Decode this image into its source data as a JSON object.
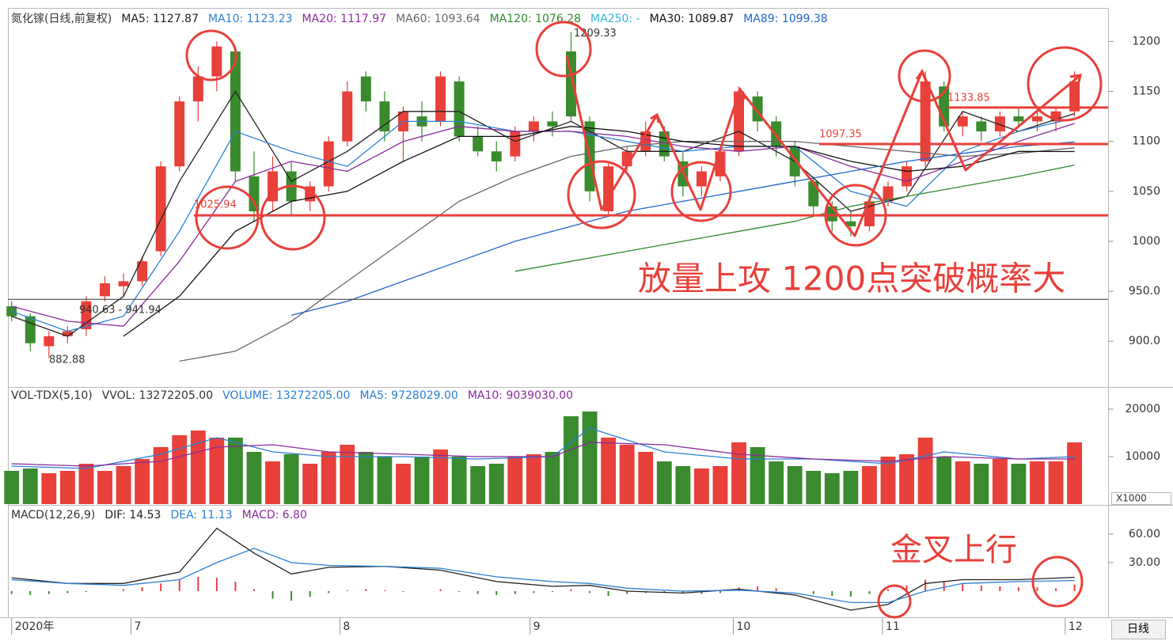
{
  "chart_data": [
    {
      "type": "candlestick",
      "title": "氮化镓(日线,前复权)",
      "xlim": [
        -0.2,
        58.8
      ],
      "ylim": [
        855,
        1232
      ],
      "yticks": [
        {
          "value": 900,
          "label": "900.0"
        },
        {
          "value": 950,
          "label": "950.0"
        },
        1000,
        1050,
        1100,
        1150,
        1200
      ],
      "xticks": [
        {
          "value": 0,
          "label": "2020年"
        },
        {
          "value": 6.4,
          "label": "7"
        },
        {
          "value": 17.6,
          "label": "8"
        },
        {
          "value": 27.8,
          "label": "9"
        },
        {
          "value": 38.7,
          "label": "10"
        },
        {
          "value": 46.7,
          "label": "11"
        },
        {
          "value": 56.5,
          "label": "12"
        }
      ],
      "up_color": "#e8403a",
      "down_color": "#3a8a2e",
      "ohlc": [
        [
          935,
          940,
          920,
          925
        ],
        [
          925,
          928,
          890,
          898
        ],
        [
          895,
          910,
          883,
          905
        ],
        [
          905,
          915,
          898,
          910
        ],
        [
          912,
          945,
          905,
          940
        ],
        [
          945,
          965,
          940,
          958
        ],
        [
          955,
          968,
          945,
          960
        ],
        [
          960,
          985,
          955,
          980
        ],
        [
          990,
          1080,
          985,
          1075
        ],
        [
          1075,
          1145,
          1070,
          1140
        ],
        [
          1140,
          1175,
          1120,
          1165
        ],
        [
          1165,
          1200,
          1150,
          1195
        ],
        [
          1190,
          1195,
          1060,
          1070
        ],
        [
          1065,
          1090,
          1020,
          1030
        ],
        [
          1040,
          1085,
          1030,
          1070
        ],
        [
          1070,
          1080,
          1025,
          1040
        ],
        [
          1040,
          1060,
          1030,
          1055
        ],
        [
          1055,
          1105,
          1050,
          1100
        ],
        [
          1100,
          1160,
          1095,
          1150
        ],
        [
          1165,
          1170,
          1130,
          1140
        ],
        [
          1140,
          1150,
          1100,
          1110
        ],
        [
          1110,
          1135,
          1080,
          1130
        ],
        [
          1125,
          1140,
          1100,
          1115
        ],
        [
          1120,
          1170,
          1115,
          1165
        ],
        [
          1160,
          1165,
          1100,
          1105
        ],
        [
          1105,
          1115,
          1085,
          1090
        ],
        [
          1090,
          1100,
          1070,
          1080
        ],
        [
          1085,
          1115,
          1080,
          1110
        ],
        [
          1110,
          1125,
          1100,
          1120
        ],
        [
          1120,
          1130,
          1105,
          1115
        ],
        [
          1190,
          1209.33,
          1120,
          1125
        ],
        [
          1120,
          1125,
          1040,
          1050
        ],
        [
          1030,
          1080,
          1025,
          1075
        ],
        [
          1075,
          1095,
          1070,
          1090
        ],
        [
          1090,
          1120,
          1085,
          1110
        ],
        [
          1110,
          1115,
          1080,
          1085
        ],
        [
          1080,
          1090,
          1045,
          1055
        ],
        [
          1055,
          1075,
          1045,
          1070
        ],
        [
          1065,
          1095,
          1060,
          1090
        ],
        [
          1090,
          1155,
          1085,
          1150
        ],
        [
          1145,
          1150,
          1110,
          1120
        ],
        [
          1120,
          1125,
          1085,
          1095
        ],
        [
          1095,
          1100,
          1055,
          1065
        ],
        [
          1060,
          1065,
          1025,
          1035
        ],
        [
          1035,
          1040,
          1010,
          1020
        ],
        [
          1020,
          1030,
          1005,
          1015
        ],
        [
          1015,
          1045,
          1010,
          1040
        ],
        [
          1040,
          1060,
          1035,
          1055
        ],
        [
          1055,
          1080,
          1050,
          1075
        ],
        [
          1080,
          1170,
          1075,
          1160
        ],
        [
          1155,
          1160,
          1110,
          1115
        ],
        [
          1115,
          1130,
          1105,
          1125
        ],
        [
          1120,
          1125,
          1100,
          1110
        ],
        [
          1110,
          1130,
          1105,
          1125
        ],
        [
          1125,
          1135,
          1115,
          1120
        ],
        [
          1120,
          1130,
          1110,
          1125
        ],
        [
          1120,
          1135,
          1110,
          1130
        ],
        [
          1130,
          1170,
          1125,
          1160
        ]
      ],
      "series": [
        {
          "label": "MA5: 1127.87",
          "color": "#222222",
          "x": [
            0,
            3,
            6,
            9,
            12,
            15,
            18,
            21,
            24,
            27,
            30,
            33,
            36,
            39,
            42,
            45,
            48,
            51,
            54,
            57
          ],
          "values": [
            925,
            905,
            945,
            1060,
            1150,
            1060,
            1090,
            1130,
            1130,
            1100,
            1120,
            1090,
            1090,
            1110,
            1080,
            1030,
            1045,
            1130,
            1110,
            1127.87
          ]
        },
        {
          "label": "MA10: 1123.23",
          "color": "#2a7fd4",
          "x": [
            0,
            3,
            6,
            9,
            12,
            15,
            18,
            21,
            24,
            27,
            30,
            33,
            36,
            39,
            42,
            45,
            48,
            51,
            54,
            57
          ],
          "values": [
            930,
            910,
            925,
            1010,
            1110,
            1090,
            1075,
            1120,
            1120,
            1110,
            1110,
            1100,
            1090,
            1095,
            1095,
            1050,
            1035,
            1090,
            1110,
            1123.23
          ]
        },
        {
          "label": "MA20: 1117.97",
          "color": "#8a2b9a",
          "x": [
            0,
            3,
            6,
            9,
            12,
            15,
            18,
            21,
            24,
            27,
            30,
            33,
            36,
            39,
            42,
            45,
            48,
            51,
            54,
            57
          ],
          "values": [
            935,
            920,
            915,
            980,
            1060,
            1080,
            1070,
            1100,
            1115,
            1110,
            1110,
            1105,
            1095,
            1090,
            1095,
            1075,
            1060,
            1080,
            1100,
            1117.97
          ]
        },
        {
          "label": "MA60: 1093.64",
          "color": "#666666",
          "x": [
            0,
            3,
            6,
            9,
            12,
            15,
            18,
            21,
            24,
            27,
            30,
            33,
            36,
            39,
            42,
            45,
            48,
            51,
            54,
            57
          ],
          "values": [
            null,
            null,
            null,
            880,
            890,
            920,
            960,
            1000,
            1040,
            1065,
            1085,
            1095,
            1100,
            1100,
            1100,
            1095,
            1090,
            1085,
            1088,
            1093.64
          ]
        },
        {
          "label": "MA120: 1076.28",
          "color": "#2e8b2e",
          "x": [
            27,
            30,
            33,
            36,
            39,
            42,
            45,
            48,
            51,
            54,
            57
          ],
          "values": [
            970,
            980,
            990,
            1000,
            1010,
            1020,
            1035,
            1045,
            1055,
            1065,
            1076.28
          ]
        },
        {
          "label": "MA250: -",
          "color": "#33b5d6",
          "x": [],
          "values": []
        },
        {
          "label": "MA30: 1089.87",
          "color": "#111111",
          "x": [
            0,
            3,
            6,
            9,
            12,
            15,
            18,
            21,
            24,
            27,
            30,
            33,
            36,
            39,
            42,
            45,
            48,
            51,
            54,
            57
          ],
          "values": [
            null,
            null,
            905,
            945,
            1010,
            1040,
            1050,
            1080,
            1105,
            1105,
            1115,
            1110,
            1100,
            1095,
            1095,
            1080,
            1070,
            1075,
            1090,
            1089.87
          ]
        },
        {
          "label": "MA89: 1099.38",
          "color": "#2266cc",
          "x": [
            0,
            3,
            6,
            9,
            12,
            15,
            18,
            21,
            24,
            27,
            30,
            33,
            36,
            39,
            42,
            45,
            48,
            51,
            54,
            57
          ],
          "values": [
            null,
            null,
            null,
            null,
            null,
            926,
            940,
            960,
            980,
            1000,
            1015,
            1030,
            1040,
            1050,
            1060,
            1070,
            1080,
            1088,
            1095,
            1099.38
          ]
        }
      ],
      "annotations": [
        {
          "text": "1209.33",
          "value": 1209.33,
          "color": "#333333"
        },
        {
          "text": "940.63 - 941.94",
          "value": 941.94,
          "color": "#333333",
          "line": true
        },
        {
          "text": "882.88",
          "value": 882.88,
          "color": "#333333"
        },
        {
          "text": "1025.94",
          "value": 1025.94,
          "color": "#e8403a",
          "line": true
        },
        {
          "text": "1097.35",
          "value": 1097.35,
          "color": "#e8403a",
          "line": true
        },
        {
          "text": "1133.85",
          "value": 1133.85,
          "color": "#e8403a",
          "line": true
        }
      ],
      "callout": "放量上攻 1200点突破概率大"
    },
    {
      "type": "bar",
      "title": "VOL-TDX(5,10)",
      "subtitle": "VVOL: 13272205.00",
      "unit_label": "X1000",
      "ylim": [
        0,
        24500
      ],
      "yticks": [
        10000,
        20000
      ],
      "label": "VOLUME: 13272205.00",
      "label_color": "#2a7fd4",
      "values": [
        7000,
        7500,
        6500,
        7000,
        8500,
        7000,
        8000,
        9500,
        12000,
        14500,
        15500,
        14000,
        14000,
        11000,
        9000,
        10500,
        8500,
        11000,
        12500,
        11000,
        10000,
        8500,
        10000,
        11500,
        10000,
        8000,
        8500,
        10000,
        10500,
        11000,
        18500,
        19500,
        14000,
        12500,
        11000,
        9000,
        8000,
        7500,
        8000,
        13000,
        12000,
        9000,
        8000,
        7000,
        6500,
        7000,
        8000,
        10000,
        10500,
        14000,
        10000,
        9000,
        8500,
        9500,
        8500,
        9000,
        9000,
        13000
      ],
      "series": [
        {
          "label": "MA5: 9728029.00",
          "color": "#2a7fd4",
          "x": [
            0,
            4,
            8,
            11,
            14,
            17,
            21,
            25,
            29,
            31,
            35,
            39,
            43,
            47,
            50,
            54,
            57
          ],
          "values": [
            8000,
            7500,
            10500,
            14000,
            11000,
            10000,
            10000,
            9500,
            10000,
            16000,
            11000,
            9500,
            9500,
            8500,
            11000,
            9500,
            10000
          ]
        },
        {
          "label": "MA10: 9039030.00",
          "color": "#8a2b9a",
          "x": [
            0,
            4,
            8,
            11,
            14,
            17,
            21,
            25,
            29,
            31,
            35,
            39,
            43,
            47,
            50,
            54,
            57
          ],
          "values": [
            8500,
            8000,
            9000,
            12000,
            12500,
            11000,
            10500,
            10000,
            10000,
            13000,
            12500,
            10500,
            9500,
            9000,
            10000,
            9500,
            9500
          ]
        }
      ]
    },
    {
      "type": "macd",
      "title": "MACD(12,26,9)",
      "ylim": [
        -27.5,
        89
      ],
      "yticks": [
        {
          "value": 30,
          "label": "30.00"
        },
        {
          "value": 60,
          "label": "60.00"
        }
      ],
      "label": "MACD: 6.80",
      "label_color": "#8a2b9a",
      "up_color": "#e8403a",
      "down_color": "#3a8a2e",
      "values": [
        -3,
        -4,
        -3,
        -2,
        -1,
        0,
        2,
        4,
        8,
        12,
        15,
        14,
        10,
        2,
        -8,
        -10,
        -6,
        -2,
        1,
        2,
        1,
        -1,
        0,
        2,
        -1,
        -3,
        -4,
        -3,
        -2,
        -1,
        2,
        -2,
        -5,
        -3,
        -2,
        -1,
        -2,
        -3,
        -2,
        4,
        5,
        3,
        0,
        -3,
        -5,
        -6,
        -3,
        2,
        6,
        12,
        10,
        8,
        6,
        5,
        4,
        4,
        3,
        6.8
      ],
      "series": [
        {
          "label": "DIF: 14.53",
          "color": "#222222",
          "x": [
            0,
            3,
            6,
            9,
            11,
            13,
            15,
            17,
            20,
            23,
            26,
            29,
            31,
            33,
            36,
            39,
            42,
            45,
            47,
            49,
            51,
            54,
            57
          ],
          "values": [
            14,
            8,
            8,
            20,
            66,
            40,
            18,
            25,
            26,
            22,
            10,
            5,
            6,
            0,
            -2,
            2,
            -4,
            -20,
            -14,
            8,
            12,
            12,
            14.53
          ]
        },
        {
          "label": "DEA: 11.13",
          "color": "#2a7fd4",
          "x": [
            0,
            3,
            6,
            9,
            11,
            13,
            15,
            17,
            20,
            23,
            26,
            29,
            31,
            33,
            36,
            39,
            42,
            45,
            47,
            49,
            51,
            54,
            57
          ],
          "values": [
            12,
            8,
            6,
            12,
            30,
            45,
            30,
            27,
            26,
            24,
            15,
            10,
            8,
            3,
            0,
            1,
            -2,
            -12,
            -12,
            0,
            8,
            10,
            11.13
          ]
        }
      ],
      "callout": "金叉上行"
    }
  ],
  "tab": "日线"
}
